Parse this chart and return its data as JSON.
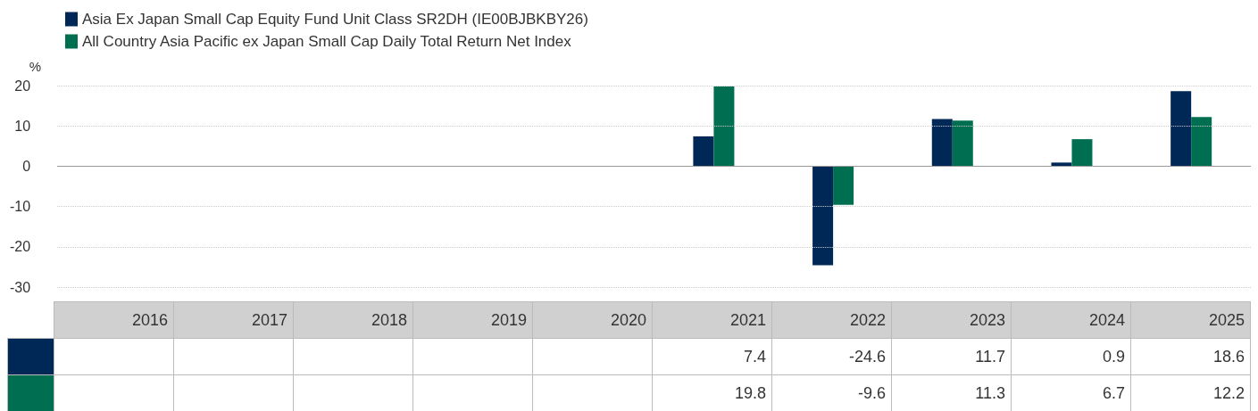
{
  "chart_data": {
    "type": "bar",
    "ylabel": "%",
    "categories": [
      "2016",
      "2017",
      "2018",
      "2019",
      "2020",
      "2021",
      "2022",
      "2023",
      "2024",
      "2025"
    ],
    "series": [
      {
        "name": "Asia Ex Japan Small Cap Equity Fund Unit Class SR2DH (IE00BJBKBY26)",
        "color": "#002856",
        "values": [
          null,
          null,
          null,
          null,
          null,
          7.4,
          -24.6,
          11.7,
          0.9,
          18.6
        ]
      },
      {
        "name": "All Country Asia Pacific ex Japan Small Cap Daily Total Return Net Index",
        "color": "#006f51",
        "values": [
          null,
          null,
          null,
          null,
          null,
          19.8,
          -9.6,
          11.3,
          6.7,
          12.2
        ]
      }
    ],
    "ylim": [
      -30,
      20
    ],
    "yticks": [
      -30,
      -20,
      -10,
      0,
      10,
      20
    ],
    "grid": "y",
    "legend": "top left",
    "tick_labels": "y",
    "data_labels": true
  }
}
